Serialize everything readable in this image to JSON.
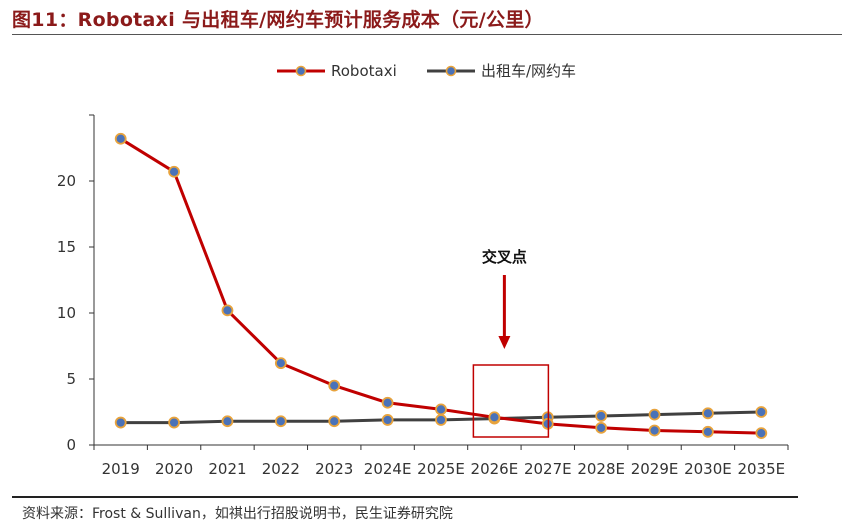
{
  "title": "图11：Robotaxi 与出租车/网约车预计服务成本（元/公里）",
  "source": "资料来源：Frost & Sullivan，如祺出行招股说明书，民生证券研究院",
  "colors": {
    "robotaxi": "#C00000",
    "taxi": "#404040",
    "marker_fill": "#2E6FB7",
    "marker_stroke": "#E8A33C",
    "title": "#8B1A1A"
  },
  "chart_data": {
    "type": "line",
    "title": "Robotaxi 与出租车/网约车预计服务成本（元/公里）",
    "xlabel": "",
    "ylabel": "",
    "categories": [
      "2019",
      "2020",
      "2021",
      "2022",
      "2023",
      "2024E",
      "2025E",
      "2026E",
      "2027E",
      "2028E",
      "2029E",
      "2030E",
      "2035E"
    ],
    "series": [
      {
        "name": "Robotaxi",
        "color": "#C00000",
        "values": [
          23.2,
          20.7,
          10.2,
          6.2,
          4.5,
          3.2,
          2.7,
          2.1,
          1.6,
          1.3,
          1.1,
          1.0,
          0.9
        ]
      },
      {
        "name": "出租车/网约车",
        "color": "#404040",
        "values": [
          1.7,
          1.7,
          1.8,
          1.8,
          1.8,
          1.9,
          1.9,
          2.0,
          2.1,
          2.2,
          2.3,
          2.4,
          2.5
        ]
      }
    ],
    "ylim": [
      0,
      25
    ],
    "yticks": [
      0,
      5,
      10,
      15,
      20
    ],
    "grid": false,
    "legend": "top-center",
    "annotation": {
      "text": "交叉点",
      "target_category": "2026E"
    }
  }
}
